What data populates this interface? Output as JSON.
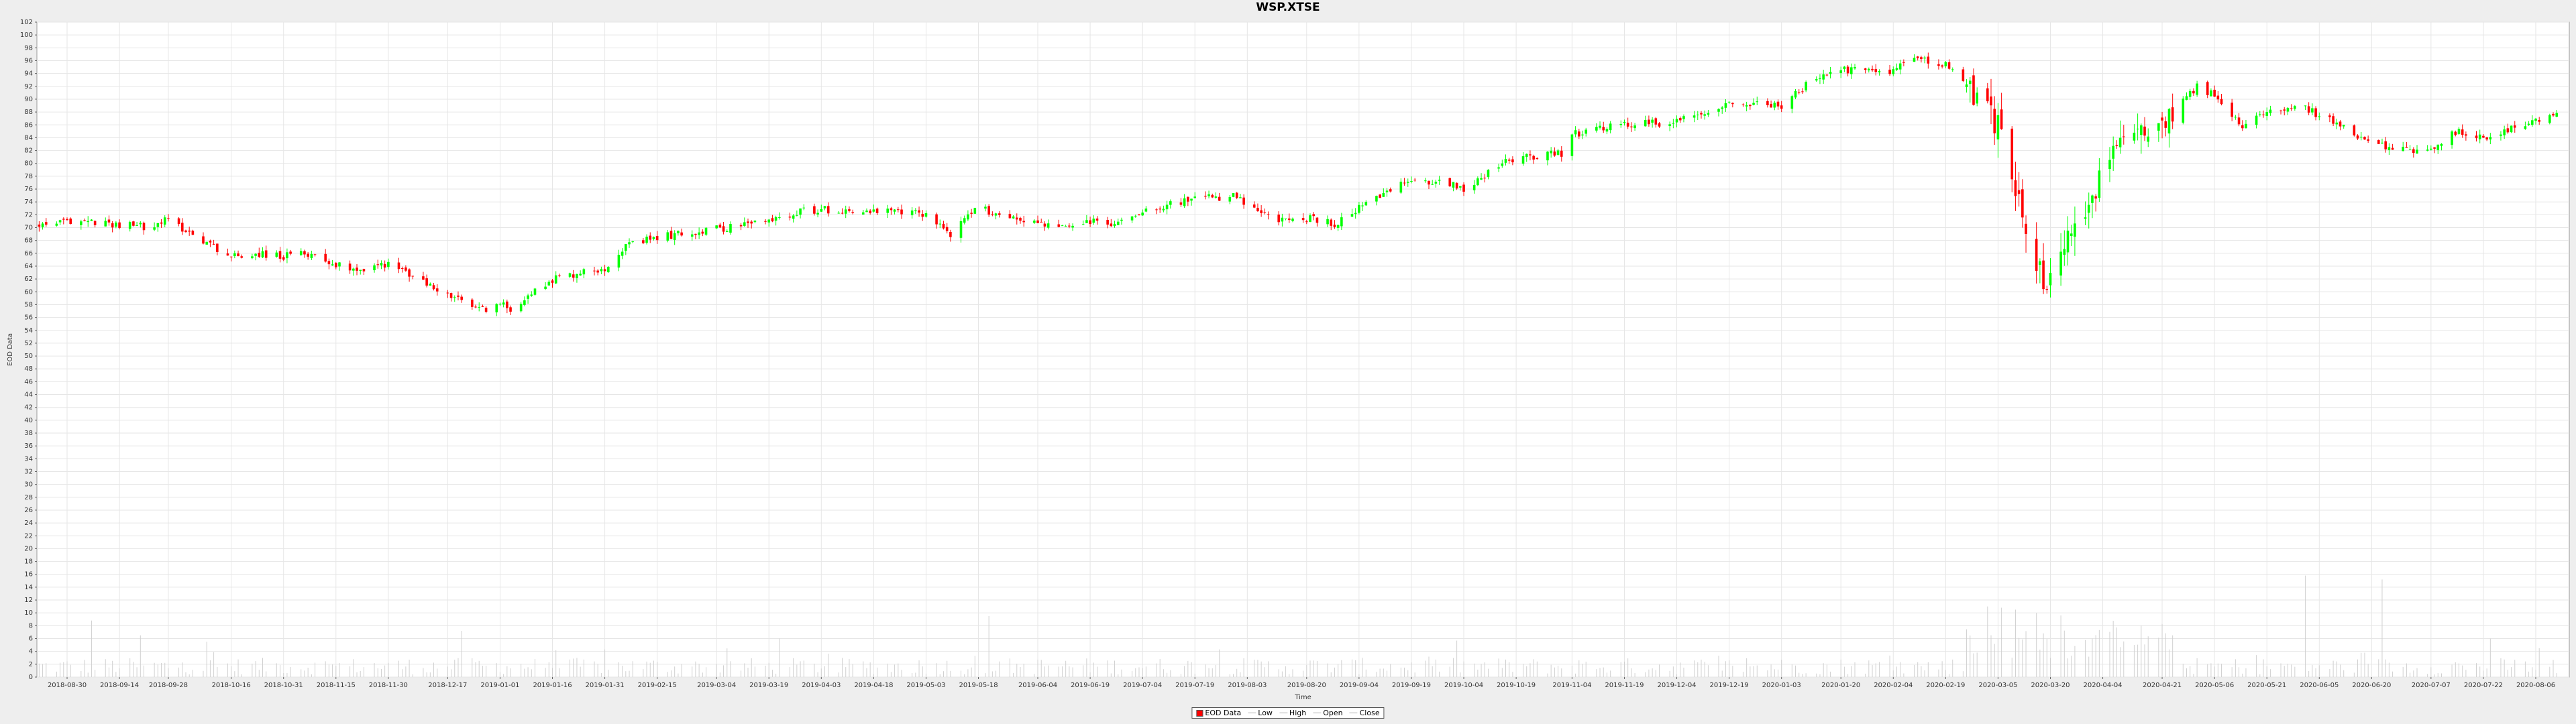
{
  "chart_data": {
    "type": "candlestick",
    "title": "WSP.XTSE",
    "xlabel": "Time",
    "ylabel": "EOD Data",
    "ylim": [
      0,
      102
    ],
    "y_ticks": [
      0,
      2,
      4,
      6,
      8,
      10,
      12,
      14,
      16,
      18,
      20,
      22,
      24,
      26,
      28,
      30,
      32,
      34,
      36,
      38,
      40,
      42,
      44,
      46,
      48,
      50,
      52,
      54,
      56,
      58,
      60,
      62,
      64,
      66,
      68,
      70,
      72,
      74,
      76,
      78,
      80,
      82,
      84,
      86,
      88,
      90,
      92,
      94,
      96,
      98,
      100,
      102
    ],
    "x_ticks": [
      "2018-08-30",
      "2018-09-14",
      "2018-09-28",
      "2018-10-16",
      "2018-10-31",
      "2018-11-15",
      "2018-11-30",
      "2018-12-17",
      "2019-01-01",
      "2019-01-16",
      "2019-01-31",
      "2019-02-15",
      "2019-03-04",
      "2019-03-19",
      "2019-04-03",
      "2019-04-18",
      "2019-05-03",
      "2019-05-18",
      "2019-06-04",
      "2019-06-19",
      "2019-07-04",
      "2019-07-19",
      "2019-08-03",
      "2019-08-20",
      "2019-09-04",
      "2019-09-19",
      "2019-10-04",
      "2019-10-19",
      "2019-11-04",
      "2019-11-19",
      "2019-12-04",
      "2019-12-19",
      "2020-01-03",
      "2020-01-20",
      "2020-02-04",
      "2020-02-19",
      "2020-03-05",
      "2020-03-20",
      "2020-04-04",
      "2020-04-21",
      "2020-05-06",
      "2020-05-21",
      "2020-06-05",
      "2020-06-20",
      "2020-07-07",
      "2020-07-22",
      "2020-08-06"
    ],
    "grid": true,
    "price_path": [
      {
        "date": "2018-08-22",
        "close": 70.5
      },
      {
        "date": "2018-08-30",
        "close": 70.8
      },
      {
        "date": "2018-09-05",
        "close": 71.0
      },
      {
        "date": "2018-09-14",
        "close": 70.5
      },
      {
        "date": "2018-09-21",
        "close": 70.2
      },
      {
        "date": "2018-09-28",
        "close": 71.2
      },
      {
        "date": "2018-10-05",
        "close": 69.0
      },
      {
        "date": "2018-10-16",
        "close": 65.5
      },
      {
        "date": "2018-10-24",
        "close": 66.0
      },
      {
        "date": "2018-10-31",
        "close": 65.5
      },
      {
        "date": "2018-11-08",
        "close": 66.0
      },
      {
        "date": "2018-11-15",
        "close": 64.2
      },
      {
        "date": "2018-11-23",
        "close": 63.5
      },
      {
        "date": "2018-11-30",
        "close": 64.5
      },
      {
        "date": "2018-12-10",
        "close": 61.5
      },
      {
        "date": "2018-12-17",
        "close": 59.5
      },
      {
        "date": "2018-12-26",
        "close": 57.2
      },
      {
        "date": "2019-01-01",
        "close": 58.0
      },
      {
        "date": "2019-01-04",
        "close": 57.5
      },
      {
        "date": "2019-01-16",
        "close": 62.0
      },
      {
        "date": "2019-01-31",
        "close": 63.8
      },
      {
        "date": "2019-02-05",
        "close": 66.8
      },
      {
        "date": "2019-02-15",
        "close": 68.5
      },
      {
        "date": "2019-03-04",
        "close": 69.8
      },
      {
        "date": "2019-03-19",
        "close": 71.0
      },
      {
        "date": "2019-03-27",
        "close": 72.5
      },
      {
        "date": "2019-04-03",
        "close": 72.8
      },
      {
        "date": "2019-04-18",
        "close": 72.5
      },
      {
        "date": "2019-05-03",
        "close": 72.2
      },
      {
        "date": "2019-05-10",
        "close": 69.0
      },
      {
        "date": "2019-05-18",
        "close": 73.2
      },
      {
        "date": "2019-05-24",
        "close": 72.0
      },
      {
        "date": "2019-06-04",
        "close": 70.8
      },
      {
        "date": "2019-06-12",
        "close": 69.8
      },
      {
        "date": "2019-06-19",
        "close": 71.0
      },
      {
        "date": "2019-06-26",
        "close": 70.5
      },
      {
        "date": "2019-07-04",
        "close": 72.8
      },
      {
        "date": "2019-07-19",
        "close": 74.5
      },
      {
        "date": "2019-07-31",
        "close": 74.8
      },
      {
        "date": "2019-08-03",
        "close": 73.0
      },
      {
        "date": "2019-08-13",
        "close": 71.0
      },
      {
        "date": "2019-08-20",
        "close": 71.5
      },
      {
        "date": "2019-08-28",
        "close": 70.5
      },
      {
        "date": "2019-09-04",
        "close": 73.0
      },
      {
        "date": "2019-09-19",
        "close": 77.5
      },
      {
        "date": "2019-09-30",
        "close": 77.0
      },
      {
        "date": "2019-10-04",
        "close": 76.0
      },
      {
        "date": "2019-10-12",
        "close": 79.0
      },
      {
        "date": "2019-10-19",
        "close": 81.0
      },
      {
        "date": "2019-11-01",
        "close": 81.5
      },
      {
        "date": "2019-11-04",
        "close": 84.5
      },
      {
        "date": "2019-11-19",
        "close": 86.0
      },
      {
        "date": "2019-12-04",
        "close": 86.5
      },
      {
        "date": "2019-12-19",
        "close": 89.5
      },
      {
        "date": "2020-01-03",
        "close": 89.0
      },
      {
        "date": "2020-01-12",
        "close": 93.0
      },
      {
        "date": "2020-01-20",
        "close": 94.5
      },
      {
        "date": "2020-02-04",
        "close": 94.5
      },
      {
        "date": "2020-02-10",
        "close": 96.5
      },
      {
        "date": "2020-02-19",
        "close": 95.5
      },
      {
        "date": "2020-02-25",
        "close": 92.0
      },
      {
        "date": "2020-03-05",
        "close": 86.0
      },
      {
        "date": "2020-03-09",
        "close": 78.5
      },
      {
        "date": "2020-03-13",
        "close": 70.0
      },
      {
        "date": "2020-03-18",
        "close": 62.0
      },
      {
        "date": "2020-03-20",
        "close": 61.0
      },
      {
        "date": "2020-03-26",
        "close": 69.0
      },
      {
        "date": "2020-04-04",
        "close": 78.0
      },
      {
        "date": "2020-04-10",
        "close": 84.0
      },
      {
        "date": "2020-04-21",
        "close": 87.0
      },
      {
        "date": "2020-05-01",
        "close": 92.0
      },
      {
        "date": "2020-05-06",
        "close": 90.5
      },
      {
        "date": "2020-05-14",
        "close": 85.5
      },
      {
        "date": "2020-05-21",
        "close": 88.5
      },
      {
        "date": "2020-05-31",
        "close": 89.0
      },
      {
        "date": "2020-06-05",
        "close": 87.5
      },
      {
        "date": "2020-06-12",
        "close": 85.5
      },
      {
        "date": "2020-06-20",
        "close": 83.0
      },
      {
        "date": "2020-07-01",
        "close": 82.0
      },
      {
        "date": "2020-07-07",
        "close": 82.5
      },
      {
        "date": "2020-07-15",
        "close": 85.0
      },
      {
        "date": "2020-07-22",
        "close": 84.0
      },
      {
        "date": "2020-07-31",
        "close": 85.5
      },
      {
        "date": "2020-08-06",
        "close": 86.5
      },
      {
        "date": "2020-08-12",
        "close": 87.5
      }
    ],
    "volume_peaks": [
      {
        "date": "2018-09-06",
        "value": 8.8
      },
      {
        "date": "2018-09-20",
        "value": 6.5
      },
      {
        "date": "2018-10-09",
        "value": 5.5
      },
      {
        "date": "2018-12-21",
        "value": 7.2
      },
      {
        "date": "2019-03-22",
        "value": 6.0
      },
      {
        "date": "2019-05-21",
        "value": 9.5
      },
      {
        "date": "2020-03-02",
        "value": 11.0
      },
      {
        "date": "2020-03-06",
        "value": 10.8
      },
      {
        "date": "2020-03-10",
        "value": 10.5
      },
      {
        "date": "2020-03-16",
        "value": 10.0
      },
      {
        "date": "2020-03-23",
        "value": 9.6
      },
      {
        "date": "2020-04-01",
        "value": 6.0
      },
      {
        "date": "2020-04-24",
        "value": 6.5
      },
      {
        "date": "2020-06-01",
        "value": 15.8
      },
      {
        "date": "2020-06-23",
        "value": 15.2
      },
      {
        "date": "2020-07-24",
        "value": 6.0
      }
    ],
    "colors": {
      "up": "#00ff00",
      "down": "#ff0000",
      "volume": "#d0d0d0",
      "grid": "#e6e6e6",
      "plot_bg": "#ffffff"
    },
    "legend": {
      "placement": "bottom",
      "items": [
        {
          "label": "EOD Data",
          "swatch": "box",
          "color": "#ff0000"
        },
        {
          "label": "Low",
          "swatch": "line",
          "color": "#aaaaaa"
        },
        {
          "label": "High",
          "swatch": "line",
          "color": "#aaaaaa"
        },
        {
          "label": "Open",
          "swatch": "line",
          "color": "#aaaaaa"
        },
        {
          "label": "Close",
          "swatch": "line",
          "color": "#aaaaaa"
        }
      ]
    }
  }
}
